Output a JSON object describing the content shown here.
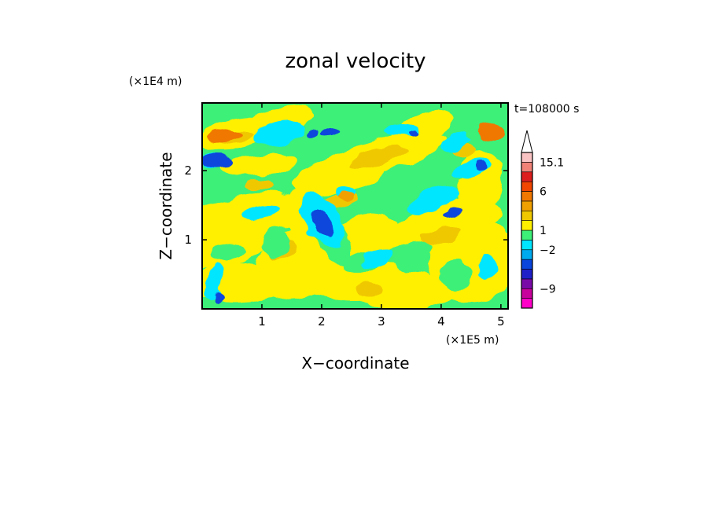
{
  "chart_data": {
    "type": "heatmap",
    "title": "zonal velocity",
    "time_label": "t=108000 s",
    "xlabel": "X−coordinate",
    "ylabel": "Z−coordinate",
    "x_unit": "(×1E5 m)",
    "y_unit": "(×1E4 m)",
    "xlim": [
      0,
      5.12
    ],
    "ylim": [
      0,
      2.98
    ],
    "x_ticks": [
      1,
      2,
      3,
      4,
      5
    ],
    "y_ticks": [
      1,
      2
    ],
    "x_tick_labels": [
      "1",
      "2",
      "3",
      "4",
      "5"
    ],
    "y_tick_labels": [
      "1",
      "2"
    ],
    "colorbar": {
      "levels": [
        -15,
        -12,
        -9,
        -6,
        -4,
        -3,
        -2,
        -1,
        1,
        2,
        3,
        4,
        6,
        9,
        12,
        15.1
      ],
      "colors": [
        "#ff00c8",
        "#c8009c",
        "#7a0aa8",
        "#2020c8",
        "#0a46dc",
        "#00aaee",
        "#00e6ff",
        "#3cf078",
        "#fff000",
        "#f0c800",
        "#f0a000",
        "#f07800",
        "#f04600",
        "#dc1e1e",
        "#f08278",
        "#fac3c3"
      ],
      "extend_max": true,
      "tick_values": [
        15.1,
        6,
        1,
        -2,
        -9
      ],
      "tick_labels": [
        "15.1",
        "6",
        "1",
        "−2",
        "−9"
      ]
    }
  }
}
